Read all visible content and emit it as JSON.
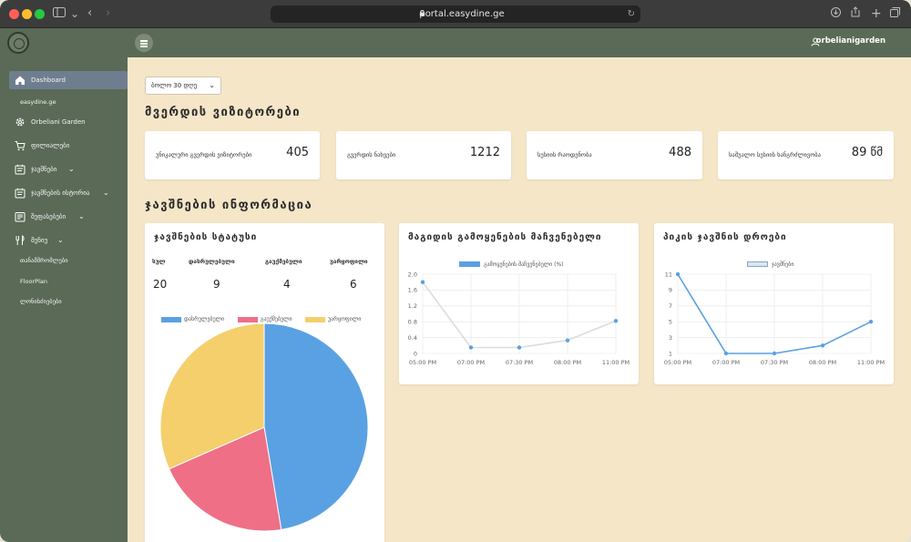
{
  "browser": {
    "url": "portal.easydine.ge"
  },
  "header": {
    "username": "orbelianigarden"
  },
  "sidebar": {
    "items": [
      {
        "label": "Dashboard",
        "icon": "home-icon"
      },
      {
        "label": "easydine.ge"
      },
      {
        "label": "Orbeliani Garden",
        "icon": "gear-icon"
      },
      {
        "label": "ფილიალები",
        "icon": "cart-icon"
      },
      {
        "label": "ჯავშნები",
        "icon": "calendar-icon"
      },
      {
        "label": "ჯავშნების ისტორია",
        "icon": "calendar-history-icon"
      },
      {
        "label": "შეფასებები",
        "icon": "reviews-icon"
      },
      {
        "label": "მენიუ",
        "icon": "utensils-icon"
      },
      {
        "label": "თანამშრომლები"
      },
      {
        "label": "FloorPlan"
      },
      {
        "label": "ლონისძიებები"
      }
    ]
  },
  "filter": {
    "period": "ბოლო 30 დღე"
  },
  "sections": {
    "visitors_title": "მვერდის ვიზიტორები",
    "reservations_title": "ჯავშნების ინფორმაცია"
  },
  "stats": [
    {
      "label": "უნიკალური გვერდის ვიზიტორები",
      "value": "405"
    },
    {
      "label": "გვერდის ნახვები",
      "value": "1212"
    },
    {
      "label": "სესიის რაოდენობა",
      "value": "488"
    },
    {
      "label": "საშუალო სესიის ხანგრძლივობა",
      "value": "89 წმ"
    }
  ],
  "status_panel": {
    "title": "ჯავშნების სტატუსი",
    "headers": [
      "სულ",
      "დასრულებული",
      "გაუქმებული",
      "უარყოფილი"
    ],
    "values": [
      "20",
      "9",
      "4",
      "6"
    ]
  },
  "table_usage_panel": {
    "title": "მაგიდის გამოყენების მაჩვენებელი"
  },
  "peak_panel": {
    "title": "პიკის ჯავშნის დროები"
  },
  "chart_data": [
    {
      "type": "pie",
      "legend": [
        "დასრულებული",
        "გაუქმებული",
        "უარყოფილი"
      ],
      "values": [
        9,
        4,
        6
      ],
      "colors": [
        "#5aa1e3",
        "#ee6f86",
        "#f5cf6c"
      ],
      "legend_position": "top"
    },
    {
      "type": "line",
      "title": "",
      "series": [
        {
          "name": "გამოყენების მაჩვენებელი (%)",
          "values": [
            1.8,
            0.15,
            0.15,
            0.33,
            0.82
          ]
        }
      ],
      "categories": [
        "05:00 PM",
        "07:00 PM",
        "07:30 PM",
        "08:00 PM",
        "11:00 PM"
      ],
      "y_ticks": [
        "0",
        "0.4",
        "0.8",
        "1.2",
        "1.6",
        "2.0"
      ],
      "ylim": [
        0,
        2.0
      ],
      "color": "#dcdcdc",
      "legend_color": "#5aa1e3",
      "grid": true,
      "legend_position": "top"
    },
    {
      "type": "line",
      "title": "",
      "series": [
        {
          "name": "ჯავშნები",
          "values": [
            11,
            1,
            1,
            2,
            5
          ]
        }
      ],
      "categories": [
        "05:00 PM",
        "07:00 PM",
        "07:30 PM",
        "08:00 PM",
        "11:00 PM"
      ],
      "y_ticks": [
        "1",
        "3",
        "5",
        "7",
        "9",
        "11"
      ],
      "ylim": [
        1,
        11
      ],
      "color": "#5aa1e3",
      "legend_color": "#d9e6f3",
      "grid": true,
      "legend_position": "top"
    }
  ]
}
